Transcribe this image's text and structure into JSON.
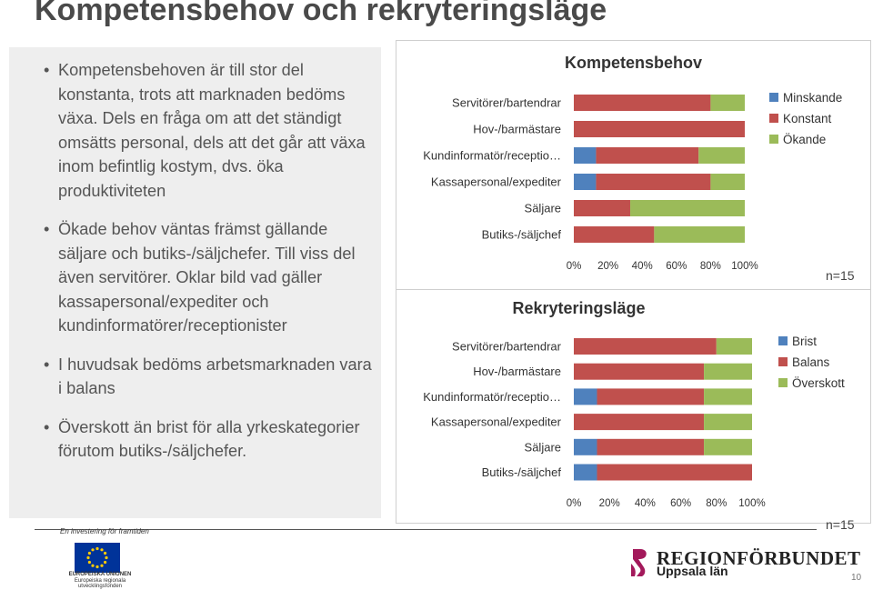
{
  "slide": {
    "title": "Kompetensbehov och rekryteringsläge",
    "bullets": [
      "Kompetensbehoven är till stor del konstanta, trots att marknaden bedöms växa. Dels en fråga om att det ständigt omsätts personal, dels att det går att växa inom befintlig kostym, dvs. öka produktiviteten",
      "Ökade behov väntas främst gällande säljare och butiks-/säljchefer. Till viss del även servitörer. Oklar bild vad gäller kassapersonal/expediter och kundinformatörer/receptionister",
      "I huvudsak bedöms arbetsmarknaden vara i balans",
      "Överskott än brist för alla yrkeskategorier förutom butiks-/säljchefer."
    ],
    "bullet_glyph": "•",
    "page_number": "10"
  },
  "footer": {
    "investing_text": "En investering för framtiden",
    "eu_lines": [
      "EUROPEISKA UNIONEN",
      "Europeiska regionala",
      "utvecklingsfonden"
    ],
    "region_name": "REGIONFÖRBUNDET",
    "region_sub": "Uppsala län"
  },
  "chart_data": [
    {
      "type": "bar",
      "orientation": "horizontal-stacked-100",
      "title": "Kompetensbehov",
      "categories": [
        "Servitörer/bartendrar",
        "Hov-/barmästare",
        "Kundinformatör/receptio…",
        "Kassapersonal/expediter",
        "Säljare",
        "Butiks-/säljchef"
      ],
      "series": [
        {
          "name": "Minskande",
          "color": "#4f81bd",
          "values": [
            0,
            0,
            13,
            13,
            0,
            0
          ]
        },
        {
          "name": "Konstant",
          "color": "#c0504d",
          "values": [
            80,
            100,
            60,
            67,
            33,
            47
          ]
        },
        {
          "name": "Ökande",
          "color": "#9bbb59",
          "values": [
            20,
            0,
            27,
            20,
            67,
            53
          ]
        }
      ],
      "xlim": [
        0,
        100
      ],
      "tick_labels": [
        "0%",
        "20%",
        "40%",
        "60%",
        "80%",
        "100%"
      ],
      "legend": "right",
      "n_label": "n=15"
    },
    {
      "type": "bar",
      "orientation": "horizontal-stacked-100",
      "title": "Rekryteringsläge",
      "categories": [
        "Servitörer/bartendrar",
        "Hov-/barmästare",
        "Kundinformatör/receptio…",
        "Kassapersonal/expediter",
        "Säljare",
        "Butiks-/säljchef"
      ],
      "series": [
        {
          "name": "Brist",
          "color": "#4f81bd",
          "values": [
            0,
            0,
            13,
            0,
            13,
            13
          ]
        },
        {
          "name": "Balans",
          "color": "#c0504d",
          "values": [
            80,
            73,
            60,
            73,
            60,
            87
          ]
        },
        {
          "name": "Överskott",
          "color": "#9bbb59",
          "values": [
            20,
            27,
            27,
            27,
            27,
            0
          ]
        }
      ],
      "xlim": [
        0,
        100
      ],
      "tick_labels": [
        "0%",
        "20%",
        "40%",
        "60%",
        "80%",
        "100%"
      ],
      "legend": "right",
      "n_label": "n=15"
    }
  ]
}
